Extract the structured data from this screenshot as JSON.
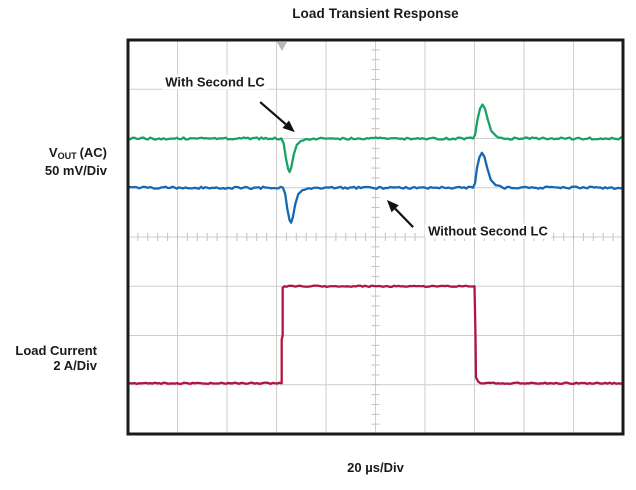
{
  "title": "Load Transient Response",
  "labels": {
    "vout": {
      "base": "V",
      "sub": "OUT",
      "suffix": "(AC)",
      "scale": "50 mV/Div"
    },
    "load": {
      "name": "Load Current",
      "scale": "2 A/Div"
    },
    "time": "20 µs/Div"
  },
  "chart_data": {
    "type": "line",
    "title": "Load Transient Response",
    "x_axis": {
      "divisions": 10,
      "scale": "20 µs/Div",
      "us_per_div": 20
    },
    "y_axis": {
      "divisions": 8
    },
    "grid": {
      "color": "#cecece",
      "tick_color": "#c2c2c2",
      "ticks_per_div": 5,
      "border_color": "#1a1a1a"
    },
    "trigger_marker_x_div": 3.11,
    "trigger_marker_color": "#b8b8b8",
    "events": {
      "load_step_rise_div": 3.12,
      "load_step_fall_div": 7.0,
      "load_step_amplitude_divs": 2,
      "load_step_amplitude_amps": 4
    },
    "series": [
      {
        "name": "VOUT (AC) With Second LC",
        "color": "#18A266",
        "scale": "50 mV/Div",
        "baseline_div": 2.0,
        "dip_mv": -33,
        "overshoot_mv": 34,
        "noise_div": 0.022,
        "points_div": [
          [
            0,
            2.0
          ],
          [
            3.1,
            2.0
          ],
          [
            3.145,
            2.1
          ],
          [
            3.19,
            2.4
          ],
          [
            3.235,
            2.62
          ],
          [
            3.265,
            2.68
          ],
          [
            3.3,
            2.58
          ],
          [
            3.35,
            2.32
          ],
          [
            3.41,
            2.13
          ],
          [
            3.5,
            2.045
          ],
          [
            3.62,
            2.01
          ],
          [
            3.75,
            2.0
          ],
          [
            6.97,
            2.0
          ],
          [
            7.01,
            1.93
          ],
          [
            7.06,
            1.62
          ],
          [
            7.11,
            1.4
          ],
          [
            7.16,
            1.31
          ],
          [
            7.21,
            1.39
          ],
          [
            7.27,
            1.62
          ],
          [
            7.34,
            1.85
          ],
          [
            7.44,
            1.95
          ],
          [
            7.58,
            2.0
          ],
          [
            10,
            2.0
          ]
        ]
      },
      {
        "name": "VOUT (AC) Without Second LC",
        "color": "#1767B1",
        "scale": "50 mV/Div",
        "baseline_div": 3.0,
        "dip_mv": -35,
        "overshoot_mv": 36,
        "noise_div": 0.022,
        "points_div": [
          [
            0,
            3.0
          ],
          [
            3.13,
            3.0
          ],
          [
            3.175,
            3.12
          ],
          [
            3.22,
            3.44
          ],
          [
            3.265,
            3.66
          ],
          [
            3.295,
            3.71
          ],
          [
            3.33,
            3.6
          ],
          [
            3.38,
            3.33
          ],
          [
            3.44,
            3.13
          ],
          [
            3.53,
            3.045
          ],
          [
            3.66,
            3.01
          ],
          [
            3.8,
            3.0
          ],
          [
            6.97,
            3.0
          ],
          [
            7.01,
            2.91
          ],
          [
            7.05,
            2.6
          ],
          [
            7.1,
            2.38
          ],
          [
            7.15,
            2.29
          ],
          [
            7.2,
            2.37
          ],
          [
            7.26,
            2.61
          ],
          [
            7.33,
            2.84
          ],
          [
            7.43,
            2.95
          ],
          [
            7.57,
            3.0
          ],
          [
            10,
            3.0
          ]
        ]
      },
      {
        "name": "Load Current",
        "color": "#B01740",
        "scale": "2 A/Div",
        "low_div": 6.97,
        "high_div": 5.0,
        "noise_div": 0.013,
        "points_div": [
          [
            0,
            6.97
          ],
          [
            3.105,
            6.97
          ],
          [
            3.105,
            6.08
          ],
          [
            3.125,
            6.0
          ],
          [
            3.125,
            5.03
          ],
          [
            3.16,
            5.0
          ],
          [
            7.0,
            5.0
          ],
          [
            7.02,
            6.0
          ],
          [
            7.03,
            6.85
          ],
          [
            7.07,
            6.93
          ],
          [
            7.12,
            6.97
          ],
          [
            10,
            6.97
          ]
        ]
      }
    ],
    "annotations": [
      {
        "text": "With Second LC",
        "arrow_from_div": [
          2.67,
          1.26
        ],
        "arrow_to_div": [
          3.37,
          1.87
        ]
      },
      {
        "text": "Without Second LC",
        "arrow_from_div": [
          5.76,
          3.8
        ],
        "arrow_to_div": [
          5.23,
          3.25
        ]
      }
    ]
  }
}
